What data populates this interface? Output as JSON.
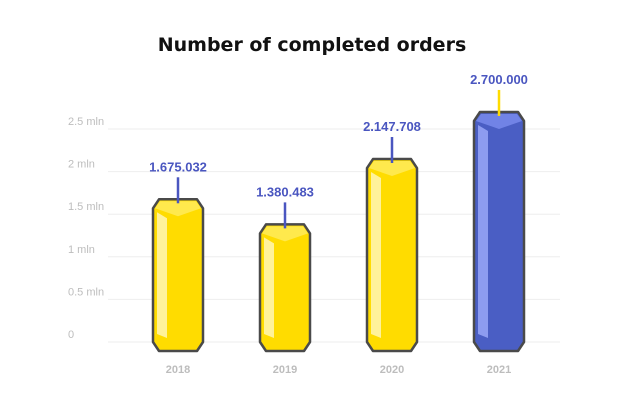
{
  "chart_data": {
    "type": "bar",
    "title": "Number of completed orders",
    "categories": [
      "2018",
      "2019",
      "2020",
      "2021"
    ],
    "values": [
      1675032,
      1380483,
      2147708,
      2700000
    ],
    "data_labels": [
      "1.675.032",
      "1.380.483",
      "2.147.708",
      "2.700.000"
    ],
    "y_ticks": [
      {
        "value": 0,
        "label": "0"
      },
      {
        "value": 500000,
        "label": "0.5 mln"
      },
      {
        "value": 1000000,
        "label": "1 mln"
      },
      {
        "value": 1500000,
        "label": "1.5 mln"
      },
      {
        "value": 2000000,
        "label": "2 mln"
      },
      {
        "value": 2500000,
        "label": "2.5 mln"
      }
    ],
    "ylim": [
      0,
      2500000
    ],
    "grid": true,
    "xlabel": "",
    "ylabel": "",
    "highlight_index": 3
  },
  "colors": {
    "bar": "#ffdc00",
    "bar_light": "#fff29a",
    "bar_top": "#ffe94d",
    "highlight": "#4a5ec4",
    "highlight_light": "#8d9cf0",
    "highlight_top": "#7183e6",
    "outline": "#4a4a4a",
    "grid": "#eeeeee",
    "label": "#4a56c0"
  }
}
